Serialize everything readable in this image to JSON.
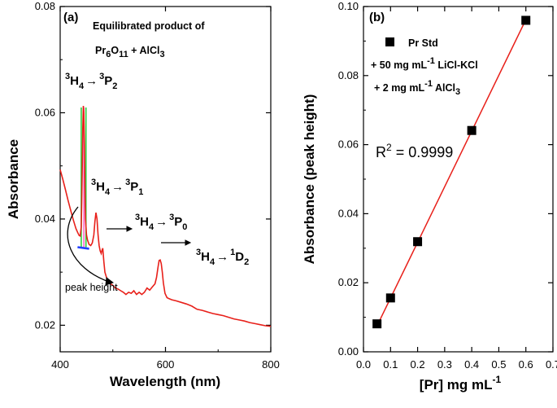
{
  "chart_data": [
    {
      "type": "line",
      "panel_label": "(a)",
      "title_line1": "Equilibrated product of",
      "title_formula": {
        "a": "Pr",
        "a_sub": "6",
        "b": "O",
        "b_sub": "11",
        "c": " + AlCl",
        "c_sub": "3"
      },
      "xlabel": "Wavelength (nm)",
      "ylabel": "Absorbance",
      "xlim": [
        400,
        800
      ],
      "ylim": [
        0.015,
        0.08
      ],
      "xticks": [
        400,
        600,
        800
      ],
      "xtick_labels": [
        "400",
        "600",
        "800"
      ],
      "yticks": [
        0.02,
        0.04,
        0.06,
        0.08
      ],
      "ytick_labels": [
        "0.02",
        "0.04",
        "0.06",
        "0.08"
      ],
      "series": [
        {
          "name": "spectrum",
          "color": "#e8201a",
          "x": [
            400,
            405,
            410,
            415,
            420,
            425,
            430,
            433,
            436,
            438,
            440,
            441,
            442,
            443,
            444,
            445,
            446,
            447,
            448,
            450,
            452,
            455,
            458,
            461,
            464,
            466,
            468,
            470,
            472,
            474,
            476,
            478,
            479,
            481,
            483,
            485,
            488,
            492,
            496,
            500,
            505,
            510,
            515,
            520,
            525,
            530,
            535,
            540,
            545,
            550,
            555,
            560,
            565,
            570,
            575,
            580,
            583,
            586,
            588,
            590,
            592,
            594,
            596,
            599,
            603,
            607,
            612,
            620,
            630,
            640,
            650,
            660,
            670,
            680,
            690,
            700,
            710,
            720,
            730,
            740,
            750,
            760,
            770,
            780,
            790,
            800
          ],
          "y": [
            0.0493,
            0.0475,
            0.0455,
            0.0435,
            0.0416,
            0.0398,
            0.0382,
            0.0375,
            0.0369,
            0.0368,
            0.0385,
            0.043,
            0.05,
            0.057,
            0.0613,
            0.06,
            0.054,
            0.046,
            0.04,
            0.037,
            0.036,
            0.0352,
            0.035,
            0.0355,
            0.037,
            0.0395,
            0.0412,
            0.04,
            0.037,
            0.035,
            0.034,
            0.0335,
            0.034,
            0.0345,
            0.032,
            0.03,
            0.029,
            0.0283,
            0.0278,
            0.0275,
            0.027,
            0.0268,
            0.0265,
            0.0262,
            0.0258,
            0.0262,
            0.026,
            0.0265,
            0.0258,
            0.0262,
            0.0258,
            0.0262,
            0.027,
            0.0266,
            0.0272,
            0.0278,
            0.029,
            0.031,
            0.0322,
            0.0323,
            0.0316,
            0.03,
            0.028,
            0.026,
            0.0252,
            0.025,
            0.0248,
            0.0246,
            0.0243,
            0.024,
            0.0236,
            0.023,
            0.0228,
            0.0225,
            0.0222,
            0.022,
            0.0218,
            0.0215,
            0.0212,
            0.021,
            0.0208,
            0.0205,
            0.0203,
            0.0201,
            0.0199,
            0.0198
          ]
        }
      ],
      "peak_height_marker": {
        "baseline_x": [
          433,
          455
        ],
        "baseline_y": [
          0.0347,
          0.0344
        ],
        "peak_x": 445,
        "peak_top": 0.0613,
        "lines": [
          {
            "x": 440,
            "color": "#2ecc40"
          },
          {
            "x": 445,
            "color": "#ff66cc"
          },
          {
            "x": 449,
            "color": "#2ecc40"
          }
        ],
        "baseline_color": "#1f3fff"
      },
      "annotations": {
        "peak_height": "peak height",
        "t1": {
          "pre_sup": "3",
          "a": "H",
          "a_sub": "4",
          "arrow": "→",
          "post_sup": "3",
          "b": "P",
          "b_sub": "2"
        },
        "t2": {
          "pre_sup": "3",
          "a": "H",
          "a_sub": "4",
          "arrow": "→",
          "post_sup": "3",
          "b": "P",
          "b_sub": "1"
        },
        "t3": {
          "pre_sup": "3",
          "a": "H",
          "a_sub": "4",
          "arrow": "→",
          "post_sup": "3",
          "b": "P",
          "b_sub": "0"
        },
        "t4": {
          "pre_sup": "3",
          "a": "H",
          "a_sub": "4",
          "arrow": "→",
          "post_sup": "1",
          "b": "D",
          "b_sub": "2"
        }
      }
    },
    {
      "type": "scatter",
      "panel_label": "(b)",
      "xlabel": {
        "text": "[Pr] mg mL",
        "sup": "-1"
      },
      "ylabel": "Absorbance (peak height)",
      "xlim": [
        0.0,
        0.7
      ],
      "ylim": [
        0.0,
        0.1
      ],
      "xticks": [
        0.0,
        0.1,
        0.2,
        0.3,
        0.4,
        0.5,
        0.6,
        0.7
      ],
      "xtick_labels": [
        "0.0",
        "0.1",
        "0.2",
        "0.3",
        "0.4",
        "0.5",
        "0.6",
        "0.7"
      ],
      "yticks": [
        0.0,
        0.02,
        0.04,
        0.06,
        0.08,
        0.1
      ],
      "ytick_labels": [
        "0.00",
        "0.02",
        "0.04",
        "0.06",
        "0.08",
        "0.10"
      ],
      "series": [
        {
          "name": "Pr Std",
          "color": "#000000",
          "x": [
            0.05,
            0.1,
            0.2,
            0.4,
            0.6
          ],
          "y": [
            0.0081,
            0.0156,
            0.0319,
            0.0641,
            0.096
          ]
        }
      ],
      "fit_line": {
        "color": "#e8201a",
        "x": [
          0.05,
          0.6
        ],
        "y": [
          0.0075,
          0.0962
        ]
      },
      "r2": {
        "base": "R",
        "sup": "2",
        "value": " = 0.9999"
      },
      "legend": {
        "entry": "Pr Std",
        "line2": {
          "text": "+ 50 mg mL",
          "sup": "-1",
          "rest": " LiCl-KCl"
        },
        "line3": {
          "text": "+  2 mg mL",
          "sup": "-1",
          "rest": " AlCl",
          "sub": "3"
        }
      }
    }
  ]
}
